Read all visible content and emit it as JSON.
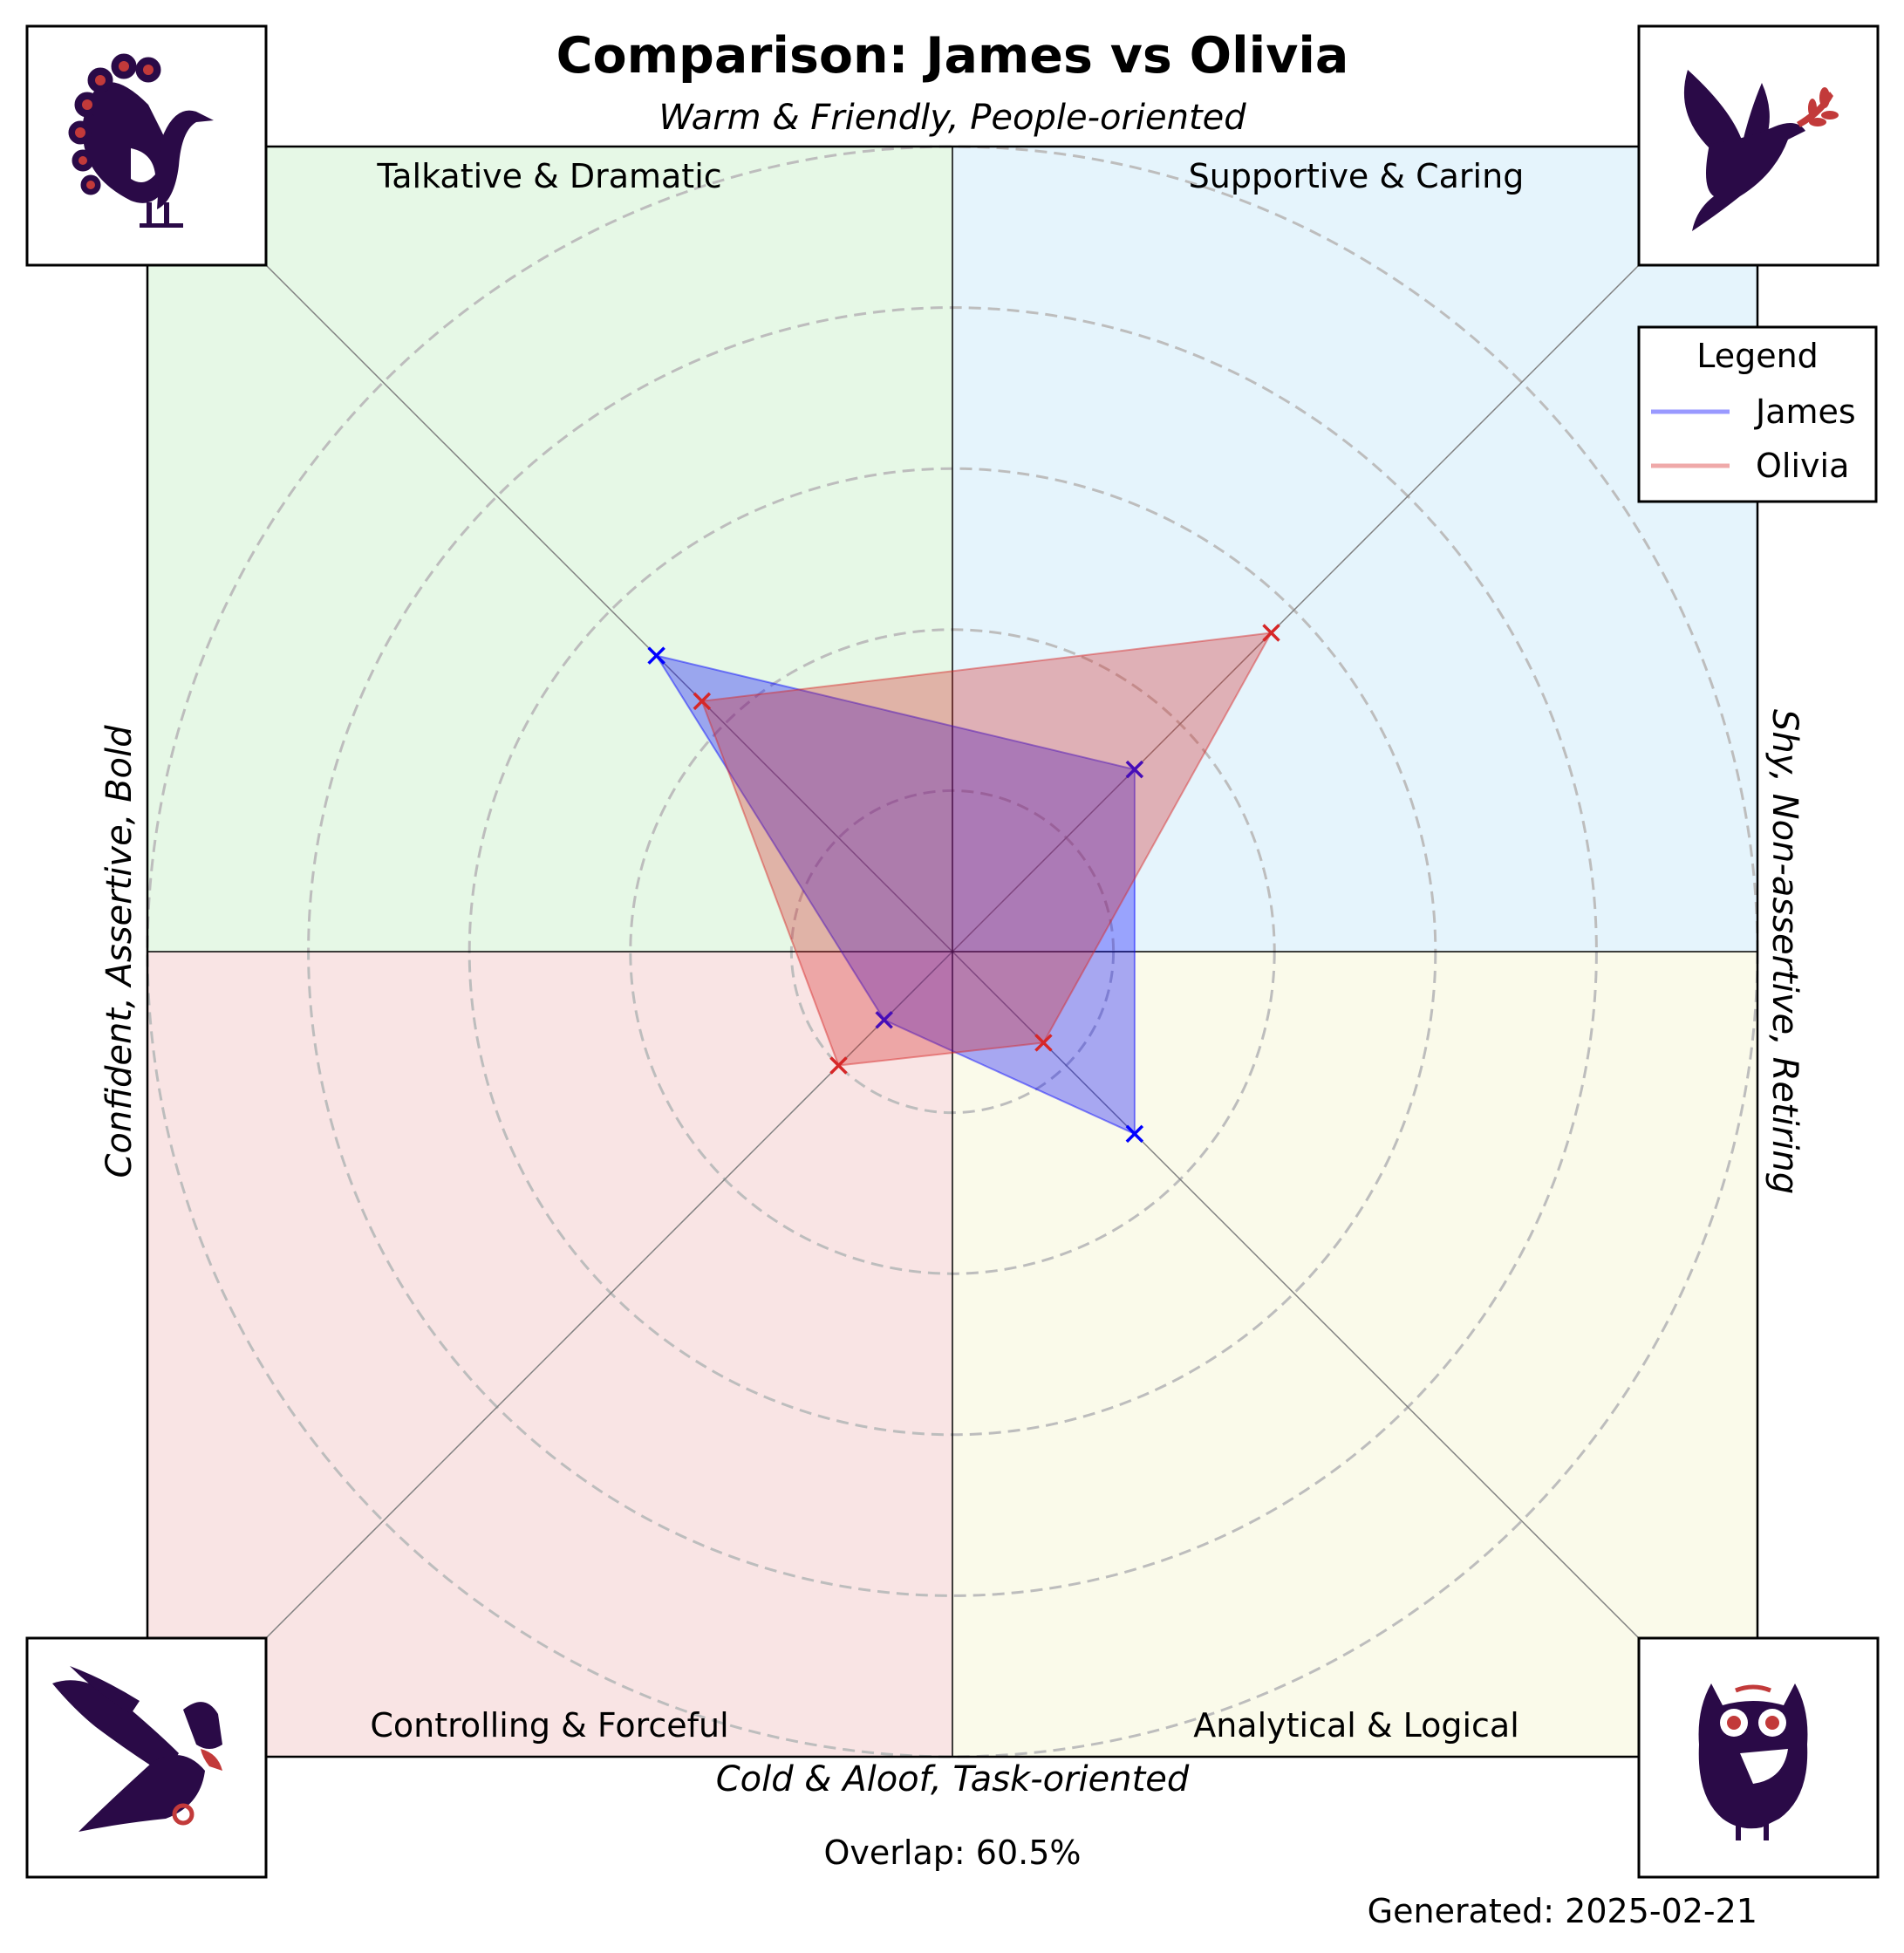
{
  "chart_data": {
    "type": "radar",
    "title": "Comparison: James vs Olivia",
    "axis_labels": {
      "top": "Warm & Friendly, People-oriented",
      "bottom": "Cold & Aloof, Task-oriented",
      "left": "Confident, Assertive, Bold",
      "right": "Shy, Non-assertive, Retiring"
    },
    "quadrants": [
      {
        "key": "top_left",
        "label": "Talkative & Dramatic",
        "color": "#e6f8e6",
        "icon": "peacock-icon"
      },
      {
        "key": "top_right",
        "label": "Supportive & Caring",
        "color": "#e5f4fc",
        "icon": "dove-icon"
      },
      {
        "key": "bottom_left",
        "label": "Controlling & Forceful",
        "color": "#f9e4e4",
        "icon": "eagle-icon"
      },
      {
        "key": "bottom_right",
        "label": "Analytical & Logical",
        "color": "#fafaea",
        "icon": "owl-icon"
      }
    ],
    "axes_order": [
      "Supportive & Caring",
      "Talkative & Dramatic",
      "Controlling & Forceful",
      "Analytical & Logical"
    ],
    "rmax": 10,
    "grid_rings": [
      2,
      4,
      6,
      8,
      10
    ],
    "grid": true,
    "legend": {
      "title": "Legend",
      "position": "upper-right"
    },
    "series": [
      {
        "name": "James",
        "color": "#0000ff",
        "values": [
          3.2,
          5.2,
          1.2,
          3.2
        ]
      },
      {
        "name": "Olivia",
        "color": "#d62728",
        "values": [
          5.6,
          4.4,
          2.0,
          1.6
        ]
      }
    ],
    "annotations": {
      "overlap": "Overlap: 60.5%",
      "generated": "Generated: 2025-02-21"
    }
  }
}
